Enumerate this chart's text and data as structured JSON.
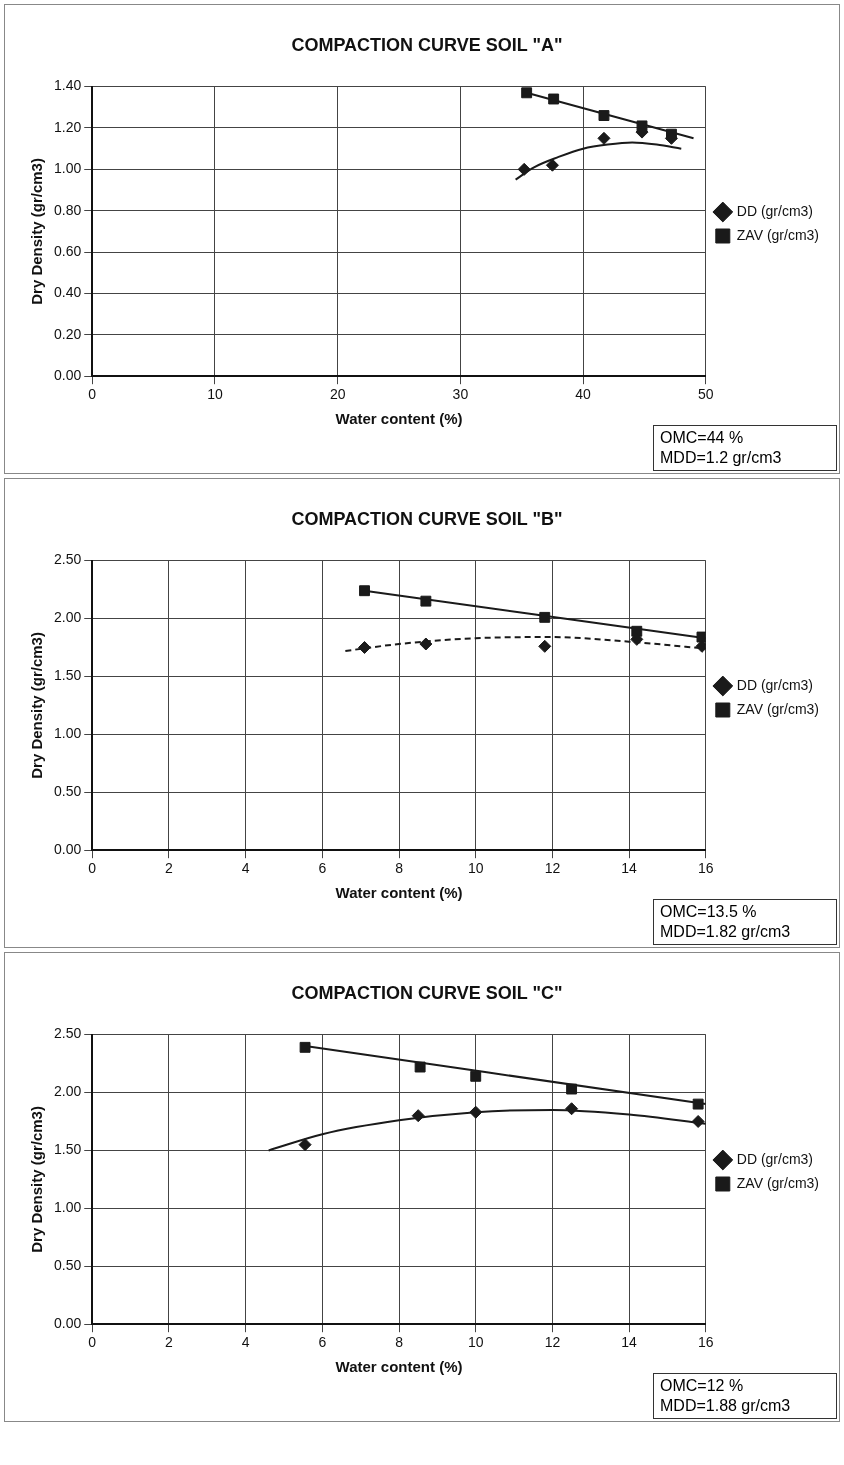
{
  "chart_data": [
    {
      "type": "scatter",
      "title": "COMPACTION CURVE SOIL \"A\"",
      "xlabel": "Water content (%)",
      "ylabel": "Dry Density (gr/cm3)",
      "xlim": [
        0,
        50
      ],
      "xticks": [
        0,
        10,
        20,
        30,
        40,
        50
      ],
      "ylim": [
        0,
        1.4
      ],
      "yticks": [
        {
          "value": 0,
          "label": "0.00"
        },
        {
          "value": 0.2,
          "label": "0.20"
        },
        {
          "value": 0.4,
          "label": "0.40"
        },
        {
          "value": 0.6,
          "label": "0.60"
        },
        {
          "value": 0.8,
          "label": "0.80"
        },
        {
          "value": 1,
          "label": "1.00"
        },
        {
          "value": 1.2,
          "label": "1.20"
        },
        {
          "value": 1.4,
          "label": "1.40"
        }
      ],
      "grid": true,
      "legend": "right",
      "annotations": [
        "OMC=44 %",
        "MDD=1.2 gr/cm3"
      ],
      "series": [
        {
          "name": "DD (gr/cm3)",
          "color": "#1a1a1a",
          "marker": "diamond",
          "x": [
            35.2,
            37.5,
            41.7,
            44.8,
            47.2
          ],
          "values": [
            1.0,
            1.02,
            1.15,
            1.18,
            1.15
          ]
        },
        {
          "name": "ZAV (gr/cm3)",
          "color": "#1a1a1a",
          "marker": "square",
          "x": [
            35.4,
            37.6,
            41.7,
            44.8,
            47.2
          ],
          "values": [
            1.37,
            1.34,
            1.26,
            1.21,
            1.17
          ]
        },
        {
          "type": "line",
          "color": "#1a1a1a",
          "marker": "none",
          "x": [
            34.5,
            36,
            38,
            40,
            42,
            44,
            46,
            48
          ],
          "values": [
            0.95,
            1.01,
            1.06,
            1.1,
            1.12,
            1.13,
            1.12,
            1.1
          ]
        },
        {
          "type": "line",
          "color": "#1a1a1a",
          "marker": "none",
          "x": [
            35.4,
            49
          ],
          "values": [
            1.37,
            1.15
          ]
        }
      ]
    },
    {
      "type": "scatter",
      "title": "COMPACTION CURVE SOIL \"B\"",
      "xlabel": "Water content (%)",
      "ylabel": "Dry Density (gr/cm3)",
      "xlim": [
        0,
        16
      ],
      "xticks": [
        0,
        2,
        4,
        6,
        8,
        10,
        12,
        14,
        16
      ],
      "ylim": [
        0,
        2.5
      ],
      "yticks": [
        {
          "value": 0,
          "label": "0.00"
        },
        {
          "value": 0.5,
          "label": "0.50"
        },
        {
          "value": 1,
          "label": "1.00"
        },
        {
          "value": 1.5,
          "label": "1.50"
        },
        {
          "value": 2,
          "label": "2.00"
        },
        {
          "value": 2.5,
          "label": "2.50"
        }
      ],
      "grid": true,
      "legend": "right",
      "annotations": [
        "OMC=13.5 %",
        "MDD=1.82 gr/cm3"
      ],
      "series": [
        {
          "name": "DD (gr/cm3)",
          "color": "#1a1a1a",
          "marker": "diamond",
          "x": [
            7.1,
            8.7,
            11.8,
            14.2,
            15.9
          ],
          "values": [
            1.75,
            1.78,
            1.76,
            1.82,
            1.76
          ]
        },
        {
          "name": "ZAV (gr/cm3)",
          "color": "#1a1a1a",
          "marker": "square",
          "x": [
            7.1,
            8.7,
            11.8,
            14.2,
            15.9
          ],
          "values": [
            2.24,
            2.15,
            2.01,
            1.89,
            1.84
          ]
        },
        {
          "type": "line",
          "color": "#1a1a1a",
          "marker": "none",
          "line_style": "dashed",
          "x": [
            6.6,
            8,
            10,
            12,
            14,
            16
          ],
          "values": [
            1.72,
            1.78,
            1.83,
            1.84,
            1.8,
            1.74
          ]
        },
        {
          "type": "line",
          "color": "#1a1a1a",
          "marker": "none",
          "x": [
            7.1,
            16
          ],
          "values": [
            2.24,
            1.83
          ]
        }
      ]
    },
    {
      "type": "scatter",
      "title": "COMPACTION CURVE SOIL \"C\"",
      "xlabel": "Water content (%)",
      "ylabel": "Dry Density (gr/cm3)",
      "xlim": [
        0,
        16
      ],
      "xticks": [
        0,
        2,
        4,
        6,
        8,
        10,
        12,
        14,
        16
      ],
      "ylim": [
        0,
        2.5
      ],
      "yticks": [
        {
          "value": 0,
          "label": "0.00"
        },
        {
          "value": 0.5,
          "label": "0.50"
        },
        {
          "value": 1,
          "label": "1.00"
        },
        {
          "value": 1.5,
          "label": "1.50"
        },
        {
          "value": 2,
          "label": "2.00"
        },
        {
          "value": 2.5,
          "label": "2.50"
        }
      ],
      "grid": true,
      "legend": "right",
      "annotations": [
        "OMC=12 %",
        "MDD=1.88 gr/cm3"
      ],
      "series": [
        {
          "name": "DD (gr/cm3)",
          "color": "#1a1a1a",
          "marker": "diamond",
          "x": [
            5.55,
            8.5,
            10,
            12.5,
            15.8
          ],
          "values": [
            1.55,
            1.8,
            1.83,
            1.86,
            1.75
          ]
        },
        {
          "name": "ZAV (gr/cm3)",
          "color": "#1a1a1a",
          "marker": "square",
          "x": [
            5.55,
            8.55,
            10,
            12.5,
            15.8
          ],
          "values": [
            2.39,
            2.22,
            2.14,
            2.03,
            1.9
          ]
        },
        {
          "type": "line",
          "color": "#1a1a1a",
          "marker": "none",
          "x": [
            4.6,
            6,
            8,
            10,
            12,
            14,
            16
          ],
          "values": [
            1.5,
            1.64,
            1.76,
            1.83,
            1.85,
            1.81,
            1.73
          ]
        },
        {
          "type": "line",
          "color": "#1a1a1a",
          "marker": "none",
          "x": [
            5.6,
            16
          ],
          "values": [
            2.4,
            1.9
          ]
        }
      ]
    }
  ]
}
